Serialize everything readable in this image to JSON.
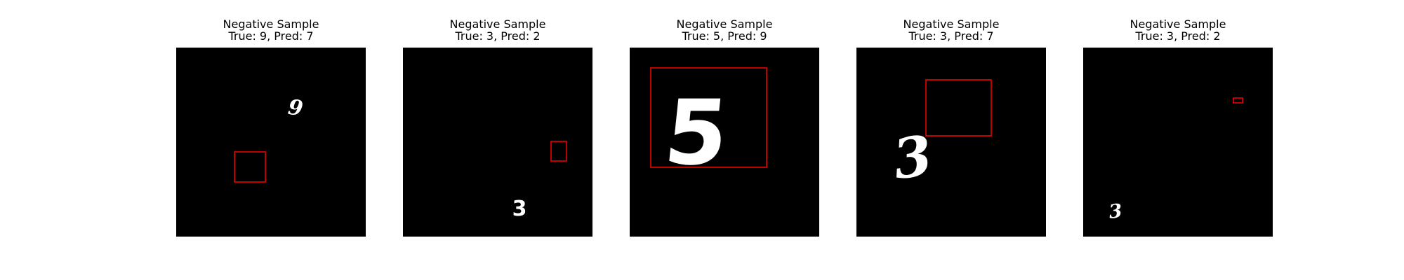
{
  "figure": {
    "panels": [
      {
        "heading": "Negative Sample",
        "subtitle": "True: 9, Pred: 7",
        "digit": "9"
      },
      {
        "heading": "Negative Sample",
        "subtitle": "True: 3, Pred: 2",
        "digit": "3"
      },
      {
        "heading": "Negative Sample",
        "subtitle": "True: 5, Pred: 9",
        "digit": "5"
      },
      {
        "heading": "Negative Sample",
        "subtitle": "True: 3, Pred: 7",
        "digit": "3"
      },
      {
        "heading": "Negative Sample",
        "subtitle": "True: 3, Pred: 2",
        "digit": "3"
      }
    ],
    "colors": {
      "background": "#000000",
      "digit": "#ffffff",
      "box": "#ff0000"
    }
  }
}
